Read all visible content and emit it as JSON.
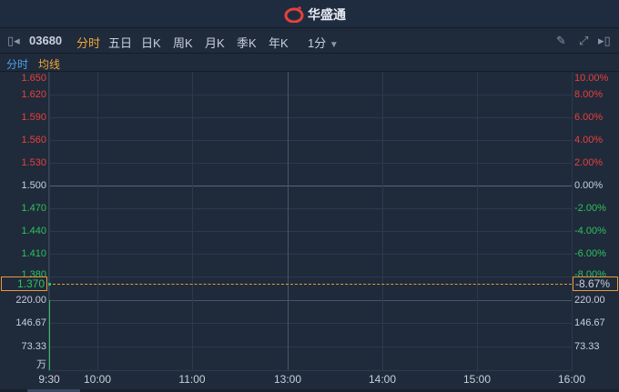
{
  "brand": {
    "name": "华盛通",
    "logo_color": "#e8413a"
  },
  "toolbar": {
    "symbol": "03680",
    "tabs": [
      "分时",
      "五日",
      "日K",
      "周K",
      "月K",
      "季K",
      "年K"
    ],
    "active_tab": "分时",
    "interval": "1分",
    "icons": [
      "collapse-left-icon",
      "pencil-icon",
      "fullscreen-icon",
      "expand-right-icon"
    ]
  },
  "subtabs": {
    "items": [
      "分时",
      "均线"
    ]
  },
  "chart_data": {
    "type": "line",
    "price_axis": {
      "left_ticks": [
        "1.650",
        "1.620",
        "1.590",
        "1.560",
        "1.530",
        "1.500",
        "1.470",
        "1.440",
        "1.410",
        "1.380"
      ],
      "right_ticks": [
        "10.00%",
        "8.00%",
        "6.00%",
        "4.00%",
        "2.00%",
        "0.00%",
        "-2.00%",
        "-4.00%",
        "-6.00%",
        "-8.00%"
      ],
      "prev_close": 1.5
    },
    "current": {
      "price": "1.370",
      "change_pct": "-8.67%"
    },
    "volume_axis": {
      "ticks": [
        "220.00",
        "146.67",
        "73.33"
      ],
      "unit": "万"
    },
    "x_ticks": [
      "9:30",
      "10:00",
      "11:00",
      "13:00",
      "14:00",
      "15:00",
      "16:00"
    ],
    "series": [
      {
        "x": [
          "9:30"
        ],
        "y": [
          1.37
        ],
        "volume": [
          220
        ]
      }
    ],
    "colors": {
      "up": "#e8413a",
      "down": "#2fc25b",
      "price_line": "#e89a3c"
    }
  }
}
